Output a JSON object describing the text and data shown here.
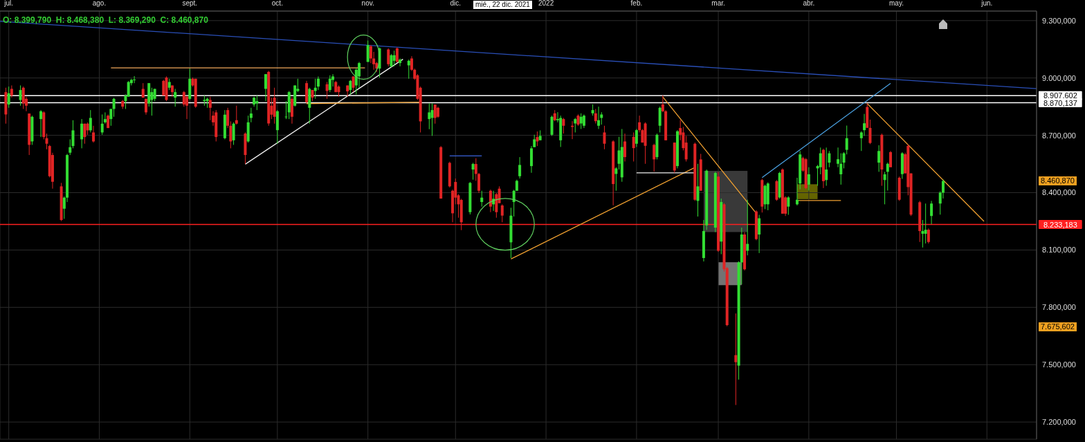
{
  "chart_data": {
    "type": "candlestick",
    "x": [
      "2021-06-30",
      "2021-07-01",
      "2021-07-02",
      "2021-07-05",
      "2021-07-06",
      "2021-07-07",
      "2021-07-08",
      "2021-07-09",
      "2021-07-12",
      "2021-07-13",
      "2021-07-14",
      "2021-07-15",
      "2021-07-16",
      "2021-07-19",
      "2021-07-20",
      "2021-07-21",
      "2021-07-22",
      "2021-07-23",
      "2021-07-26",
      "2021-07-27",
      "2021-07-28",
      "2021-07-29",
      "2021-07-30",
      "2021-08-02",
      "2021-08-03",
      "2021-08-04",
      "2021-08-05",
      "2021-08-06",
      "2021-08-09",
      "2021-08-10",
      "2021-08-11",
      "2021-08-12",
      "2021-08-13",
      "2021-08-16",
      "2021-08-17",
      "2021-08-18",
      "2021-08-19",
      "2021-08-20",
      "2021-08-23",
      "2021-08-24",
      "2021-08-25",
      "2021-08-26",
      "2021-08-27",
      "2021-08-30",
      "2021-08-31",
      "2021-09-01",
      "2021-09-02",
      "2021-09-03",
      "2021-09-06",
      "2021-09-07",
      "2021-09-08",
      "2021-09-09",
      "2021-09-10",
      "2021-09-13",
      "2021-09-14",
      "2021-09-15",
      "2021-09-16",
      "2021-09-17",
      "2021-09-20",
      "2021-09-21",
      "2021-09-22",
      "2021-09-23",
      "2021-09-24",
      "2021-09-27",
      "2021-09-28",
      "2021-09-29",
      "2021-09-30",
      "2021-10-01",
      "2021-10-04",
      "2021-10-05",
      "2021-10-06",
      "2021-10-07",
      "2021-10-08",
      "2021-10-11",
      "2021-10-12",
      "2021-10-13",
      "2021-10-14",
      "2021-10-15",
      "2021-10-18",
      "2021-10-19",
      "2021-10-20",
      "2021-10-21",
      "2021-10-22",
      "2021-10-25",
      "2021-10-26",
      "2021-10-27",
      "2021-10-28",
      "2021-10-29",
      "2021-11-01",
      "2021-11-02",
      "2021-11-03",
      "2021-11-04",
      "2021-11-05",
      "2021-11-08",
      "2021-11-09",
      "2021-11-10",
      "2021-11-11",
      "2021-11-12",
      "2021-11-15",
      "2021-11-16",
      "2021-11-17",
      "2021-11-18",
      "2021-11-19",
      "2021-11-22",
      "2021-11-23",
      "2021-11-24",
      "2021-11-25",
      "2021-11-26",
      "2021-11-29",
      "2021-11-30",
      "2021-12-01",
      "2021-12-02",
      "2021-12-03",
      "2021-12-06",
      "2021-12-07",
      "2021-12-08",
      "2021-12-09",
      "2021-12-10",
      "2021-12-13",
      "2021-12-14",
      "2021-12-15",
      "2021-12-16",
      "2021-12-17",
      "2021-12-20",
      "2021-12-21",
      "2021-12-22",
      "2021-12-23",
      "2021-12-27",
      "2021-12-28",
      "2021-12-29",
      "2021-12-30",
      "2022-01-03",
      "2022-01-04",
      "2022-01-05",
      "2022-01-06",
      "2022-01-07",
      "2022-01-10",
      "2022-01-11",
      "2022-01-12",
      "2022-01-13",
      "2022-01-14",
      "2022-01-17",
      "2022-01-18",
      "2022-01-19",
      "2022-01-20",
      "2022-01-21",
      "2022-01-24",
      "2022-01-25",
      "2022-01-26",
      "2022-01-27",
      "2022-01-28",
      "2022-01-31",
      "2022-02-01",
      "2022-02-02",
      "2022-02-03",
      "2022-02-04",
      "2022-02-07",
      "2022-02-08",
      "2022-02-09",
      "2022-02-10",
      "2022-02-11",
      "2022-02-14",
      "2022-02-15",
      "2022-02-16",
      "2022-02-17",
      "2022-02-18",
      "2022-02-21",
      "2022-02-22",
      "2022-02-23",
      "2022-02-24",
      "2022-02-25",
      "2022-02-28",
      "2022-03-01",
      "2022-03-02",
      "2022-03-03",
      "2022-03-04",
      "2022-03-07",
      "2022-03-08",
      "2022-03-09",
      "2022-03-10",
      "2022-03-11",
      "2022-03-14",
      "2022-03-15",
      "2022-03-16",
      "2022-03-17",
      "2022-03-18",
      "2022-03-21",
      "2022-03-22",
      "2022-03-23",
      "2022-03-24",
      "2022-03-25",
      "2022-03-28",
      "2022-03-29",
      "2022-03-30",
      "2022-03-31",
      "2022-04-01",
      "2022-04-04",
      "2022-04-05",
      "2022-04-06",
      "2022-04-07",
      "2022-04-08",
      "2022-04-11",
      "2022-04-12",
      "2022-04-13",
      "2022-04-14",
      "2022-04-19",
      "2022-04-20",
      "2022-04-21",
      "2022-04-22",
      "2022-04-25",
      "2022-04-26",
      "2022-04-27",
      "2022-04-28",
      "2022-04-29",
      "2022-05-02",
      "2022-05-03",
      "2022-05-04",
      "2022-05-05",
      "2022-05-06",
      "2022-05-09",
      "2022-05-10",
      "2022-05-11",
      "2022-05-12",
      "2022-05-13",
      "2022-05-16",
      "2022-05-17"
    ],
    "ohlc": [
      [
        8926,
        8949,
        8761,
        8809
      ],
      [
        8861,
        8955,
        8844,
        8920
      ],
      [
        8943,
        8961,
        8897,
        8908
      ],
      [
        8885,
        8961,
        8855,
        8937
      ],
      [
        8949,
        8955,
        8838,
        8867
      ],
      [
        8891,
        8902,
        8826,
        8855
      ],
      [
        8814,
        8814,
        8597,
        8650
      ],
      [
        8668,
        8803,
        8650,
        8797
      ],
      [
        8785,
        8832,
        8691,
        8826
      ],
      [
        8820,
        8826,
        8679,
        8691
      ],
      [
        8685,
        8709,
        8627,
        8656
      ],
      [
        8644,
        8650,
        8480,
        8486
      ],
      [
        8597,
        8609,
        8421,
        8457
      ],
      [
        8433,
        8451,
        8251,
        8257
      ],
      [
        8316,
        8380,
        8263,
        8374
      ],
      [
        8374,
        8603,
        8351,
        8597
      ],
      [
        8609,
        8679,
        8597,
        8638
      ],
      [
        8644,
        8779,
        8632,
        8726
      ],
      [
        8679,
        8785,
        8632,
        8761
      ],
      [
        8761,
        8761,
        8656,
        8691
      ],
      [
        8761,
        8767,
        8703,
        8726
      ],
      [
        8726,
        8832,
        8715,
        8791
      ],
      [
        8715,
        8750,
        8662,
        8668
      ],
      [
        8715,
        8809,
        8703,
        8761
      ],
      [
        8768,
        8820,
        8761,
        8785
      ],
      [
        8803,
        8809,
        8738,
        8738
      ],
      [
        8785,
        8838,
        8750,
        8838
      ],
      [
        8838,
        8896,
        8797,
        8891
      ],
      [
        8879,
        8885,
        8838,
        8850
      ],
      [
        8879,
        8914,
        8838,
        8908
      ],
      [
        8902,
        8984,
        8902,
        8979
      ],
      [
        8973,
        8996,
        8961,
        8990
      ],
      [
        8990,
        9010,
        8973,
        8992
      ],
      [
        8943,
        8973,
        8897,
        8897
      ],
      [
        8891,
        8891,
        8808,
        8820
      ],
      [
        8867,
        8973,
        8850,
        8973
      ],
      [
        8885,
        8949,
        8803,
        8926
      ],
      [
        8891,
        8943,
        8879,
        8943
      ],
      [
        8985,
        8990,
        8908,
        8908
      ],
      [
        9002,
        9008,
        8879,
        8885
      ],
      [
        8949,
        8996,
        8937,
        8979
      ],
      [
        8961,
        8961,
        8902,
        8926
      ],
      [
        8897,
        8943,
        8850,
        8926
      ],
      [
        8926,
        8932,
        8850,
        8861
      ],
      [
        8902,
        8908,
        8785,
        8855
      ],
      [
        8891,
        9049,
        8885,
        8996
      ],
      [
        8996,
        9002,
        8955,
        8961
      ],
      [
        8996,
        8996,
        8844,
        8850
      ],
      [
        8879,
        8908,
        8855,
        8885
      ],
      [
        8879,
        8897,
        8844,
        8891
      ],
      [
        8885,
        8902,
        8779,
        8844
      ],
      [
        8803,
        8826,
        8750,
        8768
      ],
      [
        8820,
        8832,
        8668,
        8691
      ],
      [
        8685,
        8832,
        8679,
        8808
      ],
      [
        8832,
        8844,
        8738,
        8750
      ],
      [
        8750,
        8773,
        8632,
        8668
      ],
      [
        8674,
        8768,
        8650,
        8761
      ],
      [
        8779,
        8855,
        8756,
        8761
      ],
      [
        8709,
        8715,
        8550,
        8597
      ],
      [
        8668,
        8803,
        8662,
        8768
      ],
      [
        8791,
        8844,
        8768,
        8814
      ],
      [
        8861,
        8902,
        8850,
        8897
      ],
      [
        8867,
        8908,
        8832,
        8879
      ],
      [
        8943,
        9020,
        8879,
        9020
      ],
      [
        9032,
        9037,
        8750,
        8762
      ],
      [
        8855,
        8897,
        8785,
        8808
      ],
      [
        8897,
        8949,
        8761,
        8797
      ],
      [
        8727,
        8832,
        8656,
        8826
      ],
      [
        8797,
        8879,
        8785,
        8798
      ],
      [
        8820,
        8932,
        8785,
        8926
      ],
      [
        8891,
        8902,
        8761,
        8797
      ],
      [
        8855,
        8961,
        8850,
        8961
      ],
      [
        8932,
        8996,
        8926,
        8943
      ],
      [
        8973,
        8985,
        8867,
        8873
      ],
      [
        8844,
        8949,
        8761,
        8943
      ],
      [
        8937,
        8937,
        8879,
        8897
      ],
      [
        8932,
        8996,
        8891,
        8949
      ],
      [
        8955,
        9008,
        8937,
        8996
      ],
      [
        8967,
        8979,
        8891,
        8932
      ],
      [
        8937,
        9014,
        8926,
        8996
      ],
      [
        8990,
        9020,
        8955,
        9008
      ],
      [
        8979,
        8984,
        8926,
        8926
      ],
      [
        8955,
        8961,
        8902,
        8926
      ],
      [
        8961,
        8961,
        8902,
        8930
      ],
      [
        8937,
        8990,
        8914,
        8985
      ],
      [
        9008,
        9008,
        8926,
        8949
      ],
      [
        8961,
        9049,
        8914,
        9043
      ],
      [
        9008,
        9084,
        8949,
        9078
      ],
      [
        9084,
        9196,
        9084,
        9172
      ],
      [
        9166,
        9172,
        9078,
        9102
      ],
      [
        9102,
        9137,
        9043,
        9072
      ],
      [
        9078,
        9084,
        9031,
        9049
      ],
      [
        9049,
        9160,
        9002,
        9155
      ],
      [
        9149,
        9155,
        9061,
        9072
      ],
      [
        9061,
        9125,
        9055,
        9119
      ],
      [
        9090,
        9143,
        9061,
        9119
      ],
      [
        9155,
        9160,
        9084,
        9084
      ],
      [
        9078,
        9102,
        9061,
        9096
      ],
      [
        9066,
        9096,
        8996,
        9090
      ],
      [
        9102,
        9114,
        9037,
        9043
      ],
      [
        9043,
        9049,
        8990,
        8996
      ],
      [
        9014,
        9020,
        8885,
        8891
      ],
      [
        8949,
        8955,
        8715,
        8773
      ],
      [
        8785,
        8867,
        8732,
        8820
      ],
      [
        8791,
        8867,
        8697,
        8832
      ],
      [
        8861,
        8861,
        8761,
        8791
      ],
      [
        8844,
        8850,
        8791,
        8797
      ],
      [
        8638,
        8644,
        8369,
        8369
      ],
      [
        8556,
        8562,
        8427,
        8433
      ],
      [
        8410,
        8416,
        8245,
        8292
      ],
      [
        8456,
        8474,
        8339,
        8374
      ],
      [
        8386,
        8392,
        8269,
        8339
      ],
      [
        8362,
        8368,
        8204,
        8245
      ],
      [
        8298,
        8456,
        8286,
        8451
      ],
      [
        8521,
        8556,
        8468,
        8550
      ],
      [
        8550,
        8580,
        8462,
        8498
      ],
      [
        8498,
        8503,
        8398,
        8410
      ],
      [
        8351,
        8410,
        8327,
        8374
      ],
      [
        8410,
        8416,
        8298,
        8327
      ],
      [
        8339,
        8410,
        8304,
        8368
      ],
      [
        8392,
        8398,
        8269,
        8298
      ],
      [
        8421,
        8433,
        8345,
        8345
      ],
      [
        8333,
        8339,
        8245,
        8280
      ],
      [
        8140,
        8321,
        8058,
        8280
      ],
      [
        8351,
        8415,
        8275,
        8410
      ],
      [
        8410,
        8468,
        8410,
        8462
      ],
      [
        8486,
        8586,
        8474,
        8545
      ],
      [
        8539,
        8644,
        8504,
        8632
      ],
      [
        8638,
        8703,
        8638,
        8679
      ],
      [
        8691,
        8720,
        8644,
        8668
      ],
      [
        8674,
        8726,
        8674,
        8697
      ],
      [
        8703,
        8803,
        8697,
        8797
      ],
      [
        8815,
        8832,
        8774,
        8779
      ],
      [
        8779,
        8821,
        8768,
        8785
      ],
      [
        8674,
        8803,
        8639,
        8791
      ],
      [
        8785,
        8791,
        8709,
        8750
      ],
      [
        8750,
        8774,
        8680,
        8744
      ],
      [
        8762,
        8791,
        8715,
        8785
      ],
      [
        8803,
        8809,
        8750,
        8756
      ],
      [
        8762,
        8815,
        8733,
        8797
      ],
      [
        8750,
        8809,
        8738,
        8803
      ],
      [
        8815,
        8862,
        8803,
        8832
      ],
      [
        8815,
        8838,
        8762,
        8774
      ],
      [
        8750,
        8850,
        8733,
        8779
      ],
      [
        8791,
        8821,
        8756,
        8809
      ],
      [
        8715,
        8750,
        8627,
        8656
      ],
      [
        8668,
        8674,
        8334,
        8445
      ],
      [
        8498,
        8533,
        8410,
        8527
      ],
      [
        8551,
        8692,
        8521,
        8621
      ],
      [
        8480,
        8733,
        8457,
        8639
      ],
      [
        8668,
        8709,
        8563,
        8586
      ],
      [
        8692,
        8715,
        8563,
        8633
      ],
      [
        8656,
        8733,
        8639,
        8727
      ],
      [
        8768,
        8803,
        8715,
        8727
      ],
      [
        8727,
        8733,
        8662,
        8662
      ],
      [
        8762,
        8768,
        8551,
        8645
      ],
      [
        8650,
        8656,
        8510,
        8574
      ],
      [
        8586,
        8709,
        8574,
        8703
      ],
      [
        8750,
        8850,
        8715,
        8844
      ],
      [
        8862,
        8909,
        8821,
        8826
      ],
      [
        8826,
        8832,
        8674,
        8674
      ],
      [
        8662,
        8662,
        8504,
        8516
      ],
      [
        8539,
        8727,
        8527,
        8721
      ],
      [
        8738,
        8780,
        8674,
        8703
      ],
      [
        8715,
        8744,
        8621,
        8633
      ],
      [
        8662,
        8697,
        8563,
        8574
      ],
      [
        8656,
        8662,
        8357,
        8363
      ],
      [
        8357,
        8551,
        8275,
        8433
      ],
      [
        8574,
        8603,
        8410,
        8410
      ],
      [
        8058,
        8257,
        8040,
        8199
      ],
      [
        8229,
        8521,
        8205,
        8515
      ],
      [
        8217,
        8509,
        8193,
        8503
      ],
      [
        8484,
        8509,
        8090,
        8096
      ],
      [
        8144,
        8369,
        8078,
        8351
      ],
      [
        8339,
        8345,
        7987,
        7999
      ],
      [
        8005,
        8011,
        7701,
        7707
      ],
      [
        7550,
        7768,
        7289,
        7513
      ],
      [
        7495,
        8041,
        7422,
        8035
      ],
      [
        8035,
        8217,
        7920,
        8181
      ],
      [
        8181,
        8193,
        7993,
        7999
      ],
      [
        8096,
        8363,
        8072,
        8132
      ],
      [
        8302,
        8308,
        8151,
        8157
      ],
      [
        8181,
        8284,
        8084,
        8266
      ],
      [
        8466,
        8472,
        8296,
        8327
      ],
      [
        8339,
        8442,
        8314,
        8436
      ],
      [
        8339,
        8454,
        8308,
        8448
      ],
      [
        8460,
        8466,
        8357,
        8363
      ],
      [
        8375,
        8509,
        8369,
        8503
      ],
      [
        8521,
        8527,
        8290,
        8290
      ],
      [
        8375,
        8381,
        8278,
        8290
      ],
      [
        8327,
        8381,
        8284,
        8375
      ],
      [
        8339,
        8478,
        8333,
        8363
      ],
      [
        8448,
        8618,
        8418,
        8600
      ],
      [
        8581,
        8588,
        8509,
        8515
      ],
      [
        8575,
        8581,
        8418,
        8424
      ],
      [
        8442,
        8533,
        8411,
        8496
      ],
      [
        8527,
        8545,
        8436,
        8539
      ],
      [
        8533,
        8636,
        8496,
        8606
      ],
      [
        8624,
        8630,
        8424,
        8460
      ],
      [
        8466,
        8636,
        8436,
        8521
      ],
      [
        8557,
        8618,
        8533,
        8606
      ],
      [
        8551,
        8636,
        8533,
        8575
      ],
      [
        8496,
        8606,
        8442,
        8551
      ],
      [
        8557,
        8612,
        8527,
        8606
      ],
      [
        8624,
        8751,
        8600,
        8685
      ],
      [
        8685,
        8721,
        8618,
        8715
      ],
      [
        8727,
        8812,
        8697,
        8763
      ],
      [
        8848,
        8867,
        8739,
        8739
      ],
      [
        8739,
        8782,
        8654,
        8660
      ],
      [
        8557,
        8648,
        8509,
        8618
      ],
      [
        8703,
        8709,
        8436,
        8521
      ],
      [
        8466,
        8509,
        8339,
        8496
      ],
      [
        8509,
        8557,
        8411,
        8551
      ],
      [
        8612,
        8618,
        8533,
        8533
      ],
      [
        8478,
        8484,
        8357,
        8363
      ],
      [
        8497,
        8612,
        8472,
        8606
      ],
      [
        8601,
        8609,
        8501,
        8501
      ],
      [
        8645,
        8652,
        8386,
        8429
      ],
      [
        8501,
        8501,
        8278,
        8285
      ],
      [
        8350,
        8357,
        8142,
        8199
      ],
      [
        8185,
        8257,
        8113,
        8199
      ],
      [
        8185,
        8343,
        8134,
        8206
      ],
      [
        8206,
        8213,
        8134,
        8142
      ],
      [
        8278,
        8357,
        8235,
        8343
      ],
      [
        8343,
        8407,
        8285,
        8400
      ],
      [
        8399.79,
        8468.38,
        8369.29,
        8460.87
      ]
    ],
    "series": [
      {
        "type": "line",
        "color": "#2a4fb8",
        "x": [
          "2021-06-28",
          "2022-06-18"
        ],
        "values": [
          9296,
          8944
        ]
      },
      {
        "type": "line",
        "color": "#f2a85a",
        "x": [
          "2021-08-05",
          "2021-10-31"
        ],
        "values": [
          9053,
          9053
        ]
      },
      {
        "type": "line",
        "color": "#f0f0f0",
        "x": [
          "2021-09-20",
          "2021-11-13"
        ],
        "values": [
          8549,
          9098
        ]
      },
      {
        "type": "line",
        "color": "#f0a030",
        "x": [
          "2021-10-11",
          "2021-11-19"
        ],
        "values": [
          8866,
          8873
        ]
      },
      {
        "type": "line",
        "color": "#3a60d8",
        "x": [
          "2021-11-29",
          "2021-12-10"
        ],
        "values": [
          8592,
          8592
        ]
      },
      {
        "type": "line",
        "color": "#f0a030",
        "x": [
          "2021-12-20",
          "2022-02-21"
        ],
        "values": [
          8053,
          8532
        ]
      },
      {
        "type": "line",
        "color": "#f0f0f0",
        "x": [
          "2022-02-01",
          "2022-02-21"
        ],
        "values": [
          8504,
          8504
        ]
      },
      {
        "type": "line",
        "color": "#f0a030",
        "x": [
          "2022-02-10",
          "2022-03-14"
        ],
        "values": [
          8901,
          8292
        ]
      },
      {
        "type": "line",
        "color": "#4aa0e0",
        "x": [
          "2022-03-16",
          "2022-04-29"
        ],
        "values": [
          8479,
          8972
        ]
      },
      {
        "type": "line",
        "color": "#f0a030",
        "x": [
          "2022-04-21",
          "2022-05-31"
        ],
        "values": [
          8866,
          8250
        ]
      },
      {
        "type": "line",
        "color": "#f0a030",
        "x": [
          "2022-03-28",
          "2022-04-12"
        ],
        "values": [
          8359,
          8359
        ]
      }
    ],
    "xlim": [
      "2021-06-28",
      "2022-06-18"
    ],
    "xticks": [
      {
        "value": "2021-07-01",
        "label": "jul."
      },
      {
        "value": "2021-08-01",
        "label": "ago."
      },
      {
        "value": "2021-09-01",
        "label": "sept."
      },
      {
        "value": "2021-10-01",
        "label": "oct."
      },
      {
        "value": "2021-11-01",
        "label": "nov."
      },
      {
        "value": "2021-12-01",
        "label": "dic."
      },
      {
        "value": "2022-01-01",
        "label": "2022"
      },
      {
        "value": "2022-02-01",
        "label": "feb."
      },
      {
        "value": "2022-03-01",
        "label": "mar."
      },
      {
        "value": "2022-04-01",
        "label": "abr."
      },
      {
        "value": "2022-05-01",
        "label": "may."
      },
      {
        "value": "2022-06-01",
        "label": "jun."
      }
    ],
    "ylim": [
      7110,
      9350
    ],
    "yticks": [
      {
        "value": 7200,
        "label": "7.200,000"
      },
      {
        "value": 7500,
        "label": "7.500,000"
      },
      {
        "value": 7800,
        "label": "7.800,000"
      },
      {
        "value": 8100,
        "label": "8.100,000"
      },
      {
        "value": 8400,
        "label": "8.400,000"
      },
      {
        "value": 8700,
        "label": "8.700,000"
      },
      {
        "value": 9000,
        "label": "9.000,000"
      },
      {
        "value": 9300,
        "label": "9.300,000"
      }
    ],
    "ref_lines": [
      {
        "axis": "y",
        "value": 8233.183,
        "label": "8.233,183",
        "color": "#ff2020"
      },
      {
        "axis": "y",
        "value": 8907.602,
        "label": "8.907,602",
        "color": "#ffffff"
      },
      {
        "axis": "y",
        "value": 8870.137,
        "label": "8.870,137",
        "color": "#ffffff"
      }
    ],
    "annotations": [
      "O: 8.399,790  H: 8.468,380  L: 8.369,290  C: 8.460,870",
      "8.460,870",
      "7.675,602",
      "mié., 22 dic. 2021"
    ],
    "grid": true
  }
}
